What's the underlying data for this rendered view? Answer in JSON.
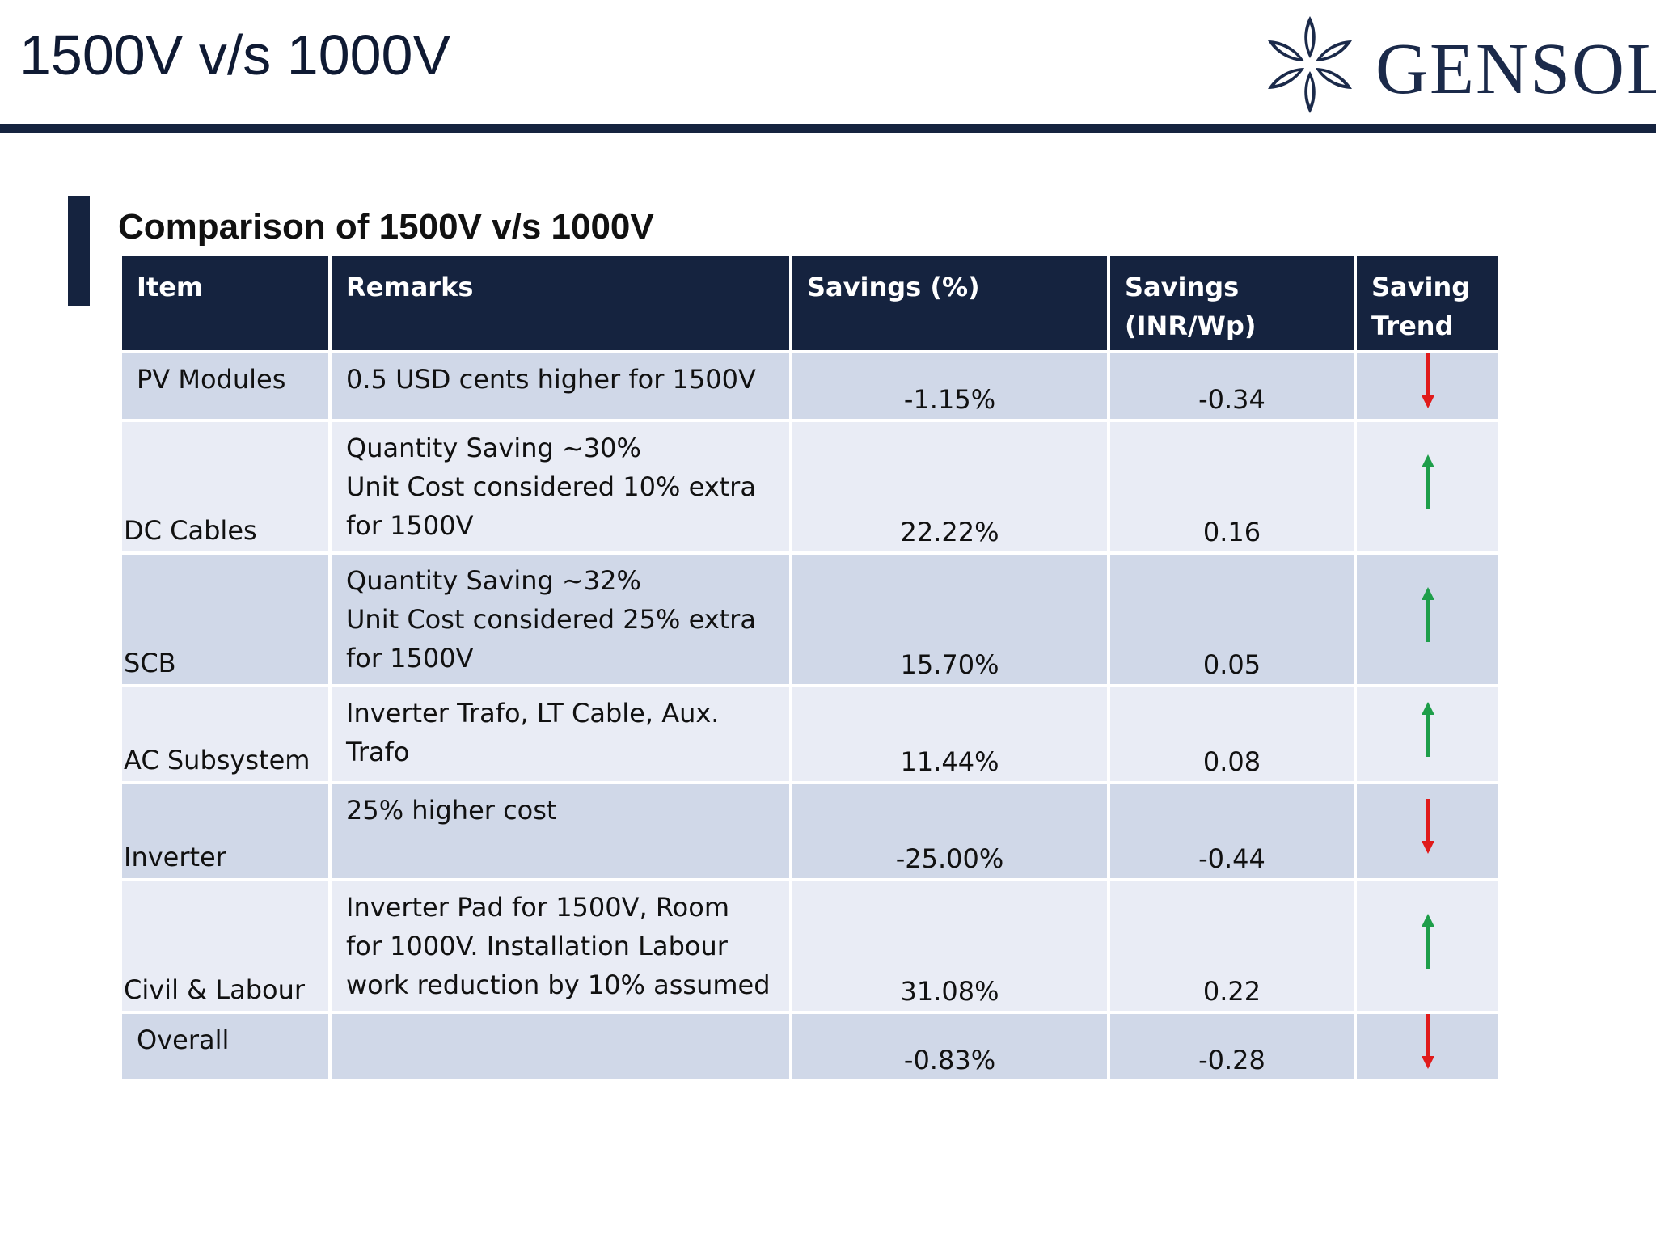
{
  "slide": {
    "title": "1500V v/s 1000V",
    "section_title": "Comparison of 1500V v/s 1000V"
  },
  "logo": {
    "text": "GENSOL",
    "icon": "snowflake-logo-icon",
    "color": "#1b2a4a"
  },
  "colors": {
    "header_bg": "#15233f",
    "row_odd": "#d0d8e8",
    "row_even": "#e9ecf5",
    "trend_up": "#1e9e4a",
    "trend_down": "#e01b1b"
  },
  "table": {
    "headers": {
      "item": "Item",
      "remarks": "Remarks",
      "savings_pct": "Savings (%)",
      "savings_inr": "Savings\n(INR/Wp)",
      "trend": "Saving\nTrend"
    },
    "rows": [
      {
        "item": "PV Modules",
        "remarks": "0.5 USD cents higher for 1500V",
        "savings_pct": "-1.15%",
        "savings_inr": "-0.34",
        "trend": "down"
      },
      {
        "item": "DC Cables",
        "remarks": "Quantity Saving ~30%\nUnit Cost considered 10% extra\nfor 1500V",
        "savings_pct": "22.22%",
        "savings_inr": "0.16",
        "trend": "up"
      },
      {
        "item": "SCB",
        "remarks": "Quantity Saving ~32%\nUnit Cost considered 25% extra\nfor 1500V",
        "savings_pct": "15.70%",
        "savings_inr": "0.05",
        "trend": "up"
      },
      {
        "item": "AC Subsystem",
        "remarks": "Inverter Trafo, LT Cable,  Aux.\nTrafo",
        "savings_pct": "11.44%",
        "savings_inr": "0.08",
        "trend": "up"
      },
      {
        "item": "Inverter",
        "remarks": "25% higher cost",
        "savings_pct": "-25.00%",
        "savings_inr": "-0.44",
        "trend": "down"
      },
      {
        "item": "Civil  & Labour",
        "remarks": "Inverter Pad for 1500V, Room\nfor 1000V. Installation Labour\nwork reduction by 10% assumed",
        "savings_pct": "31.08%",
        "savings_inr": "0.22",
        "trend": "up"
      },
      {
        "item": "Overall",
        "remarks": "",
        "savings_pct": "-0.83%",
        "savings_inr": "-0.28",
        "trend": "down"
      }
    ]
  }
}
